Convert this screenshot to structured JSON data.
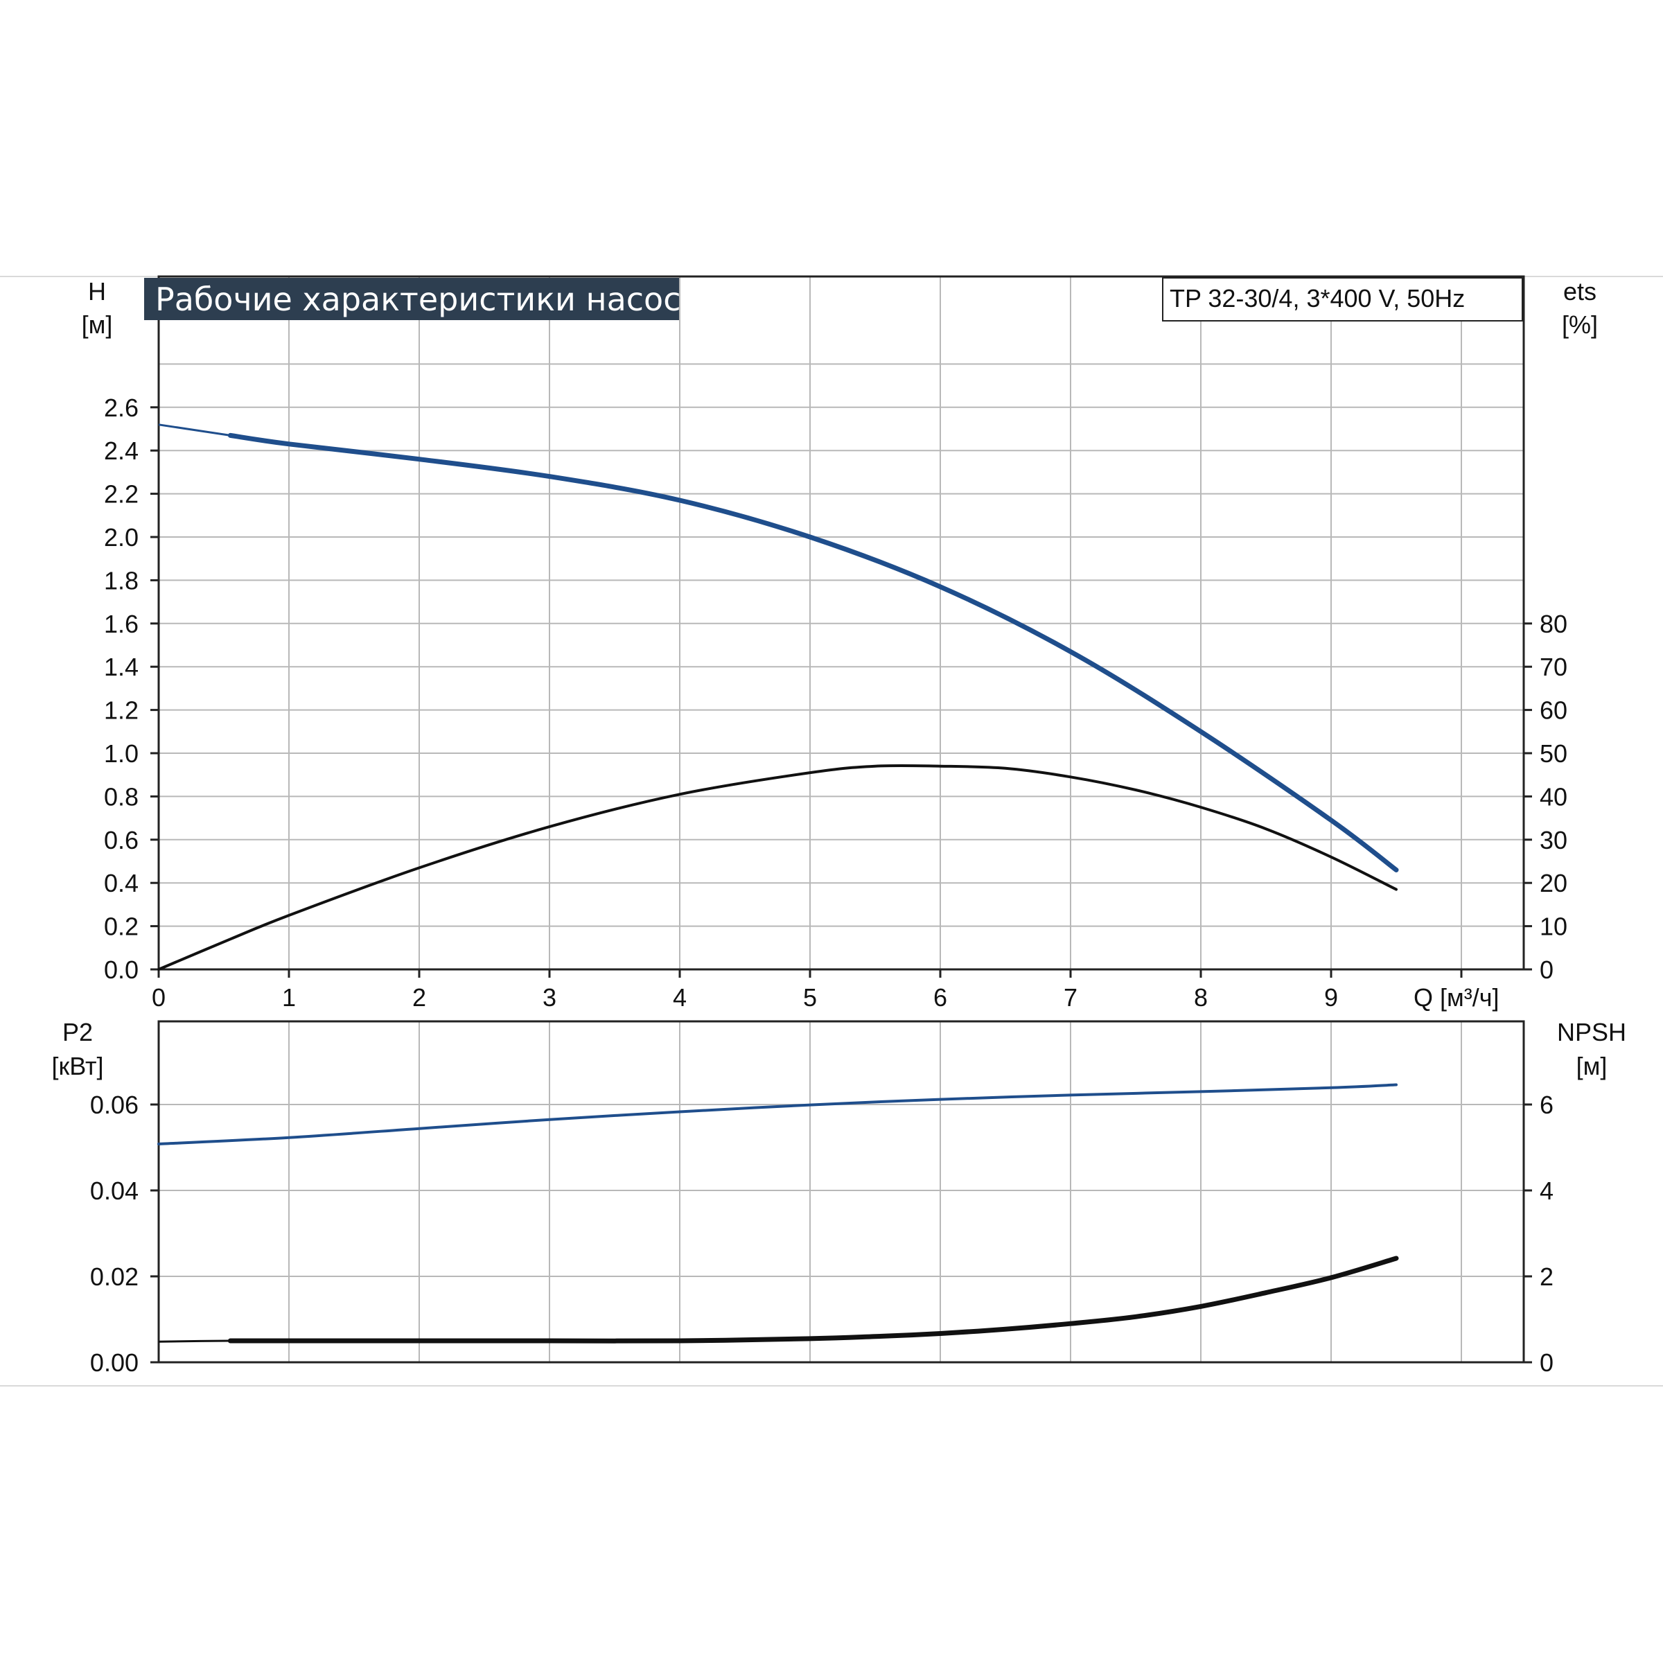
{
  "top_chart": {
    "title": "Рабочие характеристики насоса",
    "model": "TP 32-30/4, 3*400 V, 50Hz",
    "left_axis_label": "H",
    "left_axis_unit": "[м]",
    "right_axis_label": "ets",
    "right_axis_unit": "[%]",
    "x_axis_label": "Q [м³/ч]"
  },
  "bottom_chart": {
    "left_axis_label": "P2",
    "left_axis_unit": "[кВт]",
    "right_axis_label": "NPSH",
    "right_axis_unit": "[м]"
  },
  "colors": {
    "head_curve": "#1f4e8c",
    "power_curve": "#1f4e8c",
    "efficiency_curve": "#111111",
    "npsh_curve": "#111111",
    "title_bg": "#2d3e50"
  },
  "chart_data": [
    {
      "type": "line",
      "title": "Рабочие характеристики насоса",
      "xlabel": "Q [м³/ч]",
      "ylabel": "H [м]",
      "y2label": "ets [%]",
      "xlim": [
        0,
        10.5
      ],
      "ylim": [
        0,
        3.0
      ],
      "y2lim": [
        0,
        150
      ],
      "x_ticks": [
        "0",
        "1",
        "2",
        "3",
        "4",
        "5",
        "6",
        "7",
        "8",
        "9"
      ],
      "y_ticks": [
        "0.0",
        "0.2",
        "0.4",
        "0.6",
        "0.8",
        "1.0",
        "1.2",
        "1.4",
        "1.6",
        "1.8",
        "2.0",
        "2.2",
        "2.4",
        "2.6"
      ],
      "y2_ticks": [
        "0",
        "10",
        "20",
        "30",
        "40",
        "50",
        "60",
        "70",
        "80"
      ],
      "grid": true,
      "series": [
        {
          "axis": "left",
          "x": [
            0,
            0.55,
            1,
            2,
            3,
            4,
            5,
            6,
            7,
            8,
            9,
            9.5
          ],
          "y": [
            2.52,
            2.47,
            2.43,
            2.36,
            2.28,
            2.17,
            2.0,
            1.77,
            1.47,
            1.1,
            0.69,
            0.46
          ],
          "color": "#1f4e8c",
          "solid_from": 0.55
        },
        {
          "axis": "right",
          "x": [
            0,
            0.55,
            1,
            2,
            3,
            4,
            5,
            5.5,
            6,
            6.5,
            7,
            7.5,
            8,
            8.5,
            9,
            9.5
          ],
          "y": [
            0,
            7,
            12.5,
            23.5,
            33,
            40.5,
            45.5,
            47,
            47,
            46.5,
            44.5,
            41.5,
            37.5,
            32.5,
            26,
            18.5
          ],
          "color": "#111111"
        }
      ]
    },
    {
      "type": "line",
      "xlabel": "",
      "ylabel": "P2 [кВт]",
      "y2label": "NPSH [м]",
      "xlim": [
        0,
        10.5
      ],
      "ylim": [
        0,
        0.07
      ],
      "y2lim": [
        0,
        7
      ],
      "y_ticks": [
        "0.00",
        "0.02",
        "0.04",
        "0.06"
      ],
      "y2_ticks": [
        "0",
        "2",
        "4",
        "6"
      ],
      "grid": true,
      "series": [
        {
          "axis": "left",
          "x": [
            0,
            1,
            2,
            3,
            4,
            5,
            6,
            7,
            8,
            9,
            9.5
          ],
          "y": [
            0.0508,
            0.0523,
            0.0544,
            0.0565,
            0.0583,
            0.0599,
            0.0612,
            0.0622,
            0.063,
            0.0639,
            0.0646
          ],
          "color": "#1f4e8c"
        },
        {
          "axis": "right",
          "x": [
            0,
            0.55,
            1,
            2,
            3,
            4,
            5,
            5.5,
            6,
            6.5,
            7,
            7.5,
            8,
            8.5,
            9,
            9.5
          ],
          "y": [
            0.48,
            0.5,
            0.5,
            0.5,
            0.5,
            0.5,
            0.55,
            0.6,
            0.67,
            0.77,
            0.9,
            1.06,
            1.3,
            1.62,
            1.97,
            2.42
          ],
          "color": "#111111",
          "solid_from": 0.55
        }
      ]
    }
  ]
}
